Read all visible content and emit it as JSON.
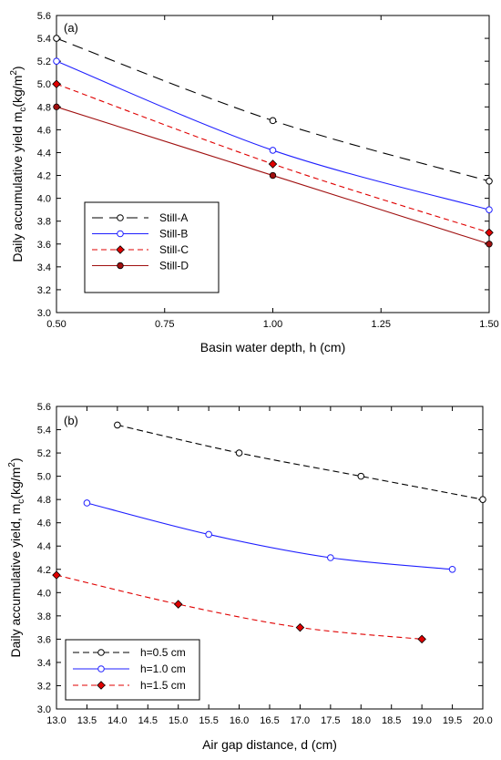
{
  "chart_data": [
    {
      "type": "line",
      "panel_label": "(a)",
      "title": "",
      "xlabel": "Basin water depth, h (cm)",
      "ylabel_main": "Daily accumulative yield m",
      "ylabel_sub": "c",
      "ylabel_unit": "(kg/m",
      "ylabel_sup": "2",
      "ylabel_close": ")",
      "xlim": [
        0.5,
        1.5
      ],
      "ylim": [
        3.0,
        5.6
      ],
      "xticks": [
        "0.50",
        "0.75",
        "1.00",
        "1.25",
        "1.50"
      ],
      "yticks": [
        "3.0",
        "3.2",
        "3.4",
        "3.6",
        "3.8",
        "4.0",
        "4.2",
        "4.4",
        "4.6",
        "4.8",
        "5.0",
        "5.2",
        "5.4",
        "5.6"
      ],
      "grid": false,
      "legend_position": "bottom-left",
      "series": [
        {
          "name": "Still-A",
          "x": [
            0.5,
            1.0,
            1.5
          ],
          "y": [
            5.4,
            4.68,
            4.15
          ],
          "color": "#000000",
          "dash": "12,7",
          "marker": "circle-open"
        },
        {
          "name": "Still-B",
          "x": [
            0.5,
            1.0,
            1.5
          ],
          "y": [
            5.2,
            4.42,
            3.9
          ],
          "color": "#1f1fff",
          "dash": "",
          "marker": "circle-open"
        },
        {
          "name": "Still-C",
          "x": [
            0.5,
            1.0,
            1.5
          ],
          "y": [
            5.0,
            4.3,
            3.7
          ],
          "color": "#e00000",
          "dash": "6,4",
          "marker": "diamond-filled"
        },
        {
          "name": "Still-D",
          "x": [
            0.5,
            1.0,
            1.5
          ],
          "y": [
            4.8,
            4.2,
            3.6
          ],
          "color": "#a01010",
          "dash": "",
          "marker": "circle-filled"
        }
      ]
    },
    {
      "type": "line",
      "panel_label": "(b)",
      "title": "",
      "xlabel": "Air gap distance, d (cm)",
      "ylabel_main": "Daily accumulative yield,  m",
      "ylabel_sub": "c",
      "ylabel_unit": "(kg/m",
      "ylabel_sup": "2",
      "ylabel_close": ")",
      "xlim": [
        13.0,
        20.0
      ],
      "ylim": [
        3.0,
        5.6
      ],
      "xticks": [
        "13.0",
        "13.5",
        "14.0",
        "14.5",
        "15.0",
        "15.5",
        "16.0",
        "16.5",
        "17.0",
        "17.5",
        "18.0",
        "18.5",
        "19.0",
        "19.5",
        "20.0"
      ],
      "yticks": [
        "3.0",
        "3.2",
        "3.4",
        "3.6",
        "3.8",
        "4.0",
        "4.2",
        "4.4",
        "4.6",
        "4.8",
        "5.0",
        "5.2",
        "5.4",
        "5.6"
      ],
      "grid": false,
      "legend_position": "bottom-left",
      "series": [
        {
          "name": "h=0.5 cm",
          "x": [
            14.0,
            16.0,
            18.0,
            20.0
          ],
          "y": [
            5.44,
            5.2,
            5.0,
            4.8
          ],
          "color": "#000000",
          "dash": "7,4",
          "marker": "circle-open"
        },
        {
          "name": "h=1.0 cm",
          "x": [
            13.5,
            15.5,
            17.5,
            19.5
          ],
          "y": [
            4.77,
            4.5,
            4.3,
            4.2
          ],
          "color": "#1f1fff",
          "dash": "",
          "marker": "circle-open"
        },
        {
          "name": "h=1.5 cm",
          "x": [
            13.0,
            15.0,
            17.0,
            19.0
          ],
          "y": [
            4.15,
            3.9,
            3.7,
            3.6
          ],
          "color": "#e00000",
          "dash": "6,4",
          "marker": "diamond-filled"
        }
      ]
    }
  ]
}
